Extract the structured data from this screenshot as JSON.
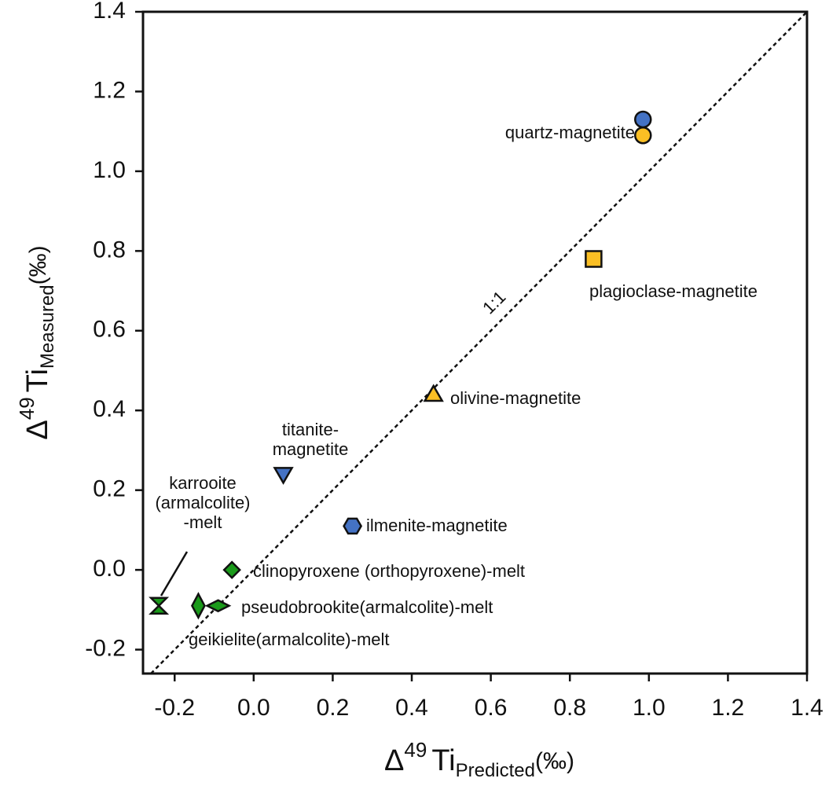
{
  "chart_data": {
    "type": "scatter",
    "x_label": {
      "symbol": "Δ",
      "sup": "49",
      "main": "Ti",
      "sub": "Predicted",
      "unit": "(‰)"
    },
    "y_label": {
      "symbol": "Δ",
      "sup": "49",
      "main": "Ti",
      "sub": "Measured",
      "unit": "(‰)"
    },
    "xlim": [
      -0.28,
      1.4
    ],
    "ylim": [
      -0.26,
      1.4
    ],
    "xticks": [
      -0.2,
      {
        "value": 0,
        "label": "0.0"
      },
      0.2,
      0.4,
      0.6,
      0.8,
      {
        "value": 1,
        "label": "1.0"
      },
      1.2,
      1.4
    ],
    "yticks": [
      -0.2,
      {
        "value": 0,
        "label": "0.0"
      },
      0.2,
      0.4,
      0.6,
      0.8,
      {
        "value": 1,
        "label": "1.0"
      },
      1.2,
      1.4
    ],
    "reference_line": {
      "label": "1:1",
      "slope": 1
    },
    "points": [
      {
        "x": 0.985,
        "y": 1.13,
        "color": "#4472c4",
        "marker": "circle"
      },
      {
        "x": 0.985,
        "y": 1.09,
        "color": "#fbbf24",
        "marker": "circle"
      },
      {
        "x": 0.86,
        "y": 0.78,
        "color": "#fbbf24",
        "marker": "square"
      },
      {
        "x": 0.455,
        "y": 0.44,
        "color": "#fbbf24",
        "marker": "triangle-up"
      },
      {
        "x": 0.075,
        "y": 0.24,
        "color": "#4472c4",
        "marker": "triangle-down"
      },
      {
        "x": 0.25,
        "y": 0.11,
        "color": "#4472c4",
        "marker": "hexagon"
      },
      {
        "x": -0.055,
        "y": 0.0,
        "color": "#1a9a1a",
        "marker": "diamond"
      },
      {
        "x": -0.09,
        "y": -0.09,
        "color": "#1a9a1a",
        "marker": "diamond-wide"
      },
      {
        "x": -0.14,
        "y": -0.09,
        "color": "#1a9a1a",
        "marker": "diamond-tall"
      },
      {
        "x": -0.24,
        "y": -0.09,
        "color": "#1a9a1a",
        "marker": "hourglass"
      }
    ],
    "annotations": [
      [
        "quartz-magnetite"
      ],
      [
        "plagioclase-magnetite"
      ],
      [
        "olivine-magnetite"
      ],
      [
        "titanite-",
        "magnetite"
      ],
      [
        "ilmenite-magnetite"
      ],
      [
        "clinopyroxene (orthopyroxene)-melt"
      ],
      [
        "pseudobrookite(armalcolite)-melt"
      ],
      [
        "geikielite(armalcolite)-melt"
      ],
      [
        "karrooite",
        "(armalcolite)",
        "-melt"
      ]
    ]
  }
}
